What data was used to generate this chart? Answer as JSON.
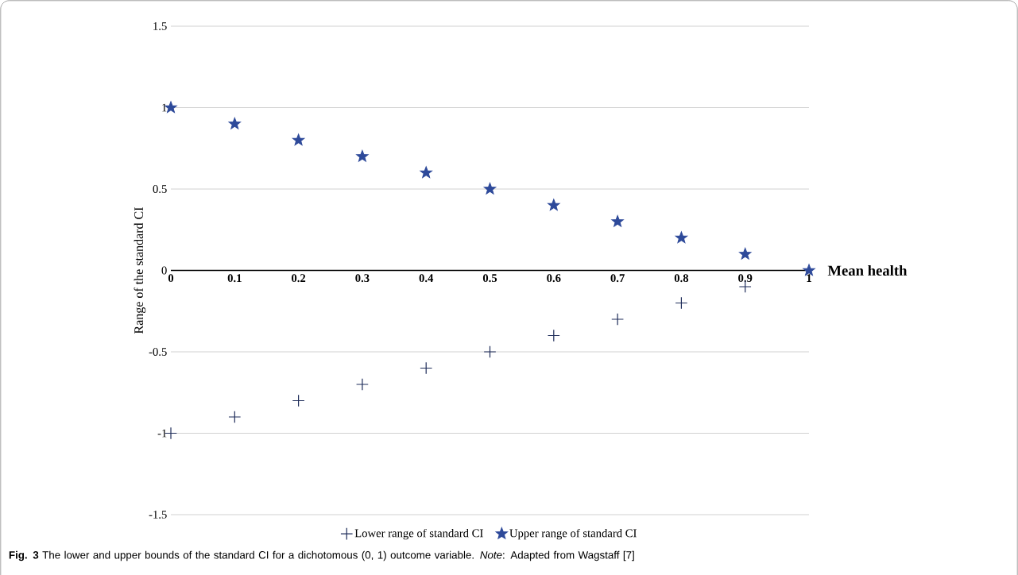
{
  "chart_data": {
    "type": "scatter",
    "xlabel": "Mean health",
    "ylabel": "Range of the standard CI",
    "x": [
      0,
      0.1,
      0.2,
      0.3,
      0.4,
      0.5,
      0.6,
      0.7,
      0.8,
      0.9,
      1
    ],
    "series": [
      {
        "name": "Lower range of standard CI",
        "color": "#1f2d5a",
        "marker": "cross",
        "values": [
          -1,
          -0.9,
          -0.8,
          -0.7,
          -0.6,
          -0.5,
          -0.4,
          -0.3,
          -0.2,
          -0.1,
          null
        ]
      },
      {
        "name": "Upper range of standard CI",
        "color": "#2e4a9a",
        "marker": "star",
        "values": [
          1,
          0.9,
          0.8,
          0.7,
          0.6,
          0.5,
          0.4,
          0.3,
          0.2,
          0.1,
          0
        ]
      }
    ],
    "xlim": [
      0,
      1
    ],
    "xticks": [
      0,
      0.1,
      0.2,
      0.3,
      0.4,
      0.5,
      0.6,
      0.7,
      0.8,
      0.9,
      1
    ],
    "ylim": [
      -1.5,
      1.5
    ],
    "yticks": [
      -1.5,
      -1,
      -0.5,
      0,
      0.5,
      1,
      1.5
    ],
    "grid": "y",
    "legend": "bottom",
    "annotations": [
      "**Fig. 3** The lower and upper bounds of the standard CI for a dichotomous (0, 1) outcome variable. *Note*: Adapted from Wagstaff [7]"
    ]
  }
}
